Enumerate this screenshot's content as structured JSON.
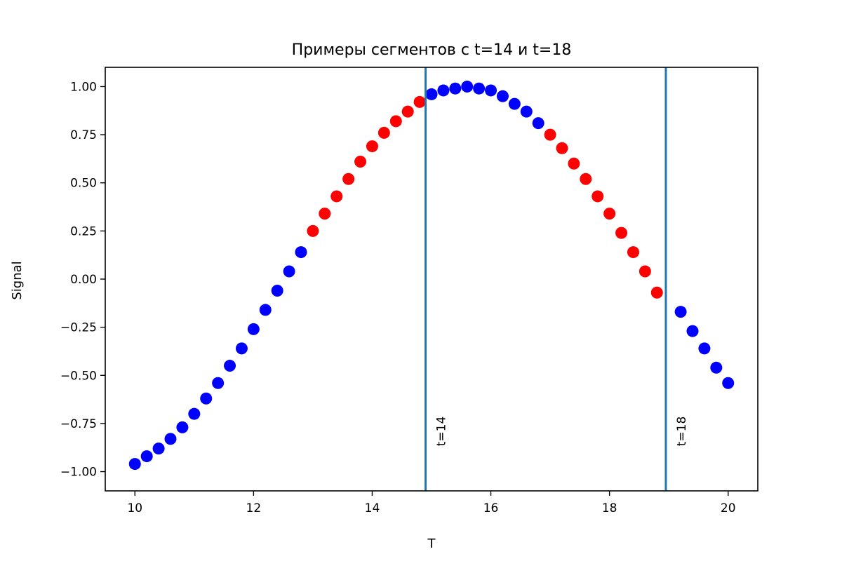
{
  "chart_data": {
    "type": "scatter",
    "title": "Примеры сегментов с t=14 и t=18",
    "xlabel": "T",
    "ylabel": "Signal",
    "xlim": [
      9.5,
      20.5
    ],
    "ylim": [
      -1.1,
      1.1
    ],
    "xticks": [
      10,
      12,
      14,
      16,
      18,
      20
    ],
    "xtick_labels": [
      "10",
      "12",
      "14",
      "16",
      "18",
      "20"
    ],
    "yticks": [
      -1.0,
      -0.75,
      -0.5,
      -0.25,
      0.0,
      0.25,
      0.5,
      0.75,
      1.0
    ],
    "ytick_labels": [
      "−1.00",
      "−0.75",
      "−0.50",
      "−0.25",
      "0.00",
      "0.25",
      "0.50",
      "0.75",
      "1.00"
    ],
    "grid": false,
    "colors": {
      "base": "#0000ff",
      "highlight": "#ff0000",
      "vline": "#1f77b4"
    },
    "series": [
      {
        "color": "#0000ff",
        "x": [
          10.0,
          10.2,
          10.4,
          10.6,
          10.8,
          11.0,
          11.2,
          11.4,
          11.6,
          11.8,
          12.0,
          12.2,
          12.4,
          12.6,
          12.8,
          15.0,
          15.2,
          15.4,
          15.6,
          15.8,
          16.0,
          16.2,
          16.4,
          16.6,
          16.8,
          19.2,
          19.4,
          19.6,
          19.8,
          20.0
        ],
        "y": [
          -0.96,
          -0.92,
          -0.88,
          -0.83,
          -0.77,
          -0.7,
          -0.62,
          -0.54,
          -0.45,
          -0.36,
          -0.26,
          -0.16,
          -0.06,
          0.04,
          0.14,
          0.96,
          0.98,
          0.99,
          1.0,
          0.99,
          0.98,
          0.95,
          0.91,
          0.87,
          0.81,
          -0.17,
          -0.27,
          -0.36,
          -0.46,
          -0.54
        ]
      },
      {
        "color": "#ff0000",
        "x": [
          13.0,
          13.2,
          13.4,
          13.6,
          13.8,
          14.0,
          14.2,
          14.4,
          14.6,
          14.8,
          17.0,
          17.2,
          17.4,
          17.6,
          17.8,
          18.0,
          18.2,
          18.4,
          18.6,
          18.8
        ],
        "y": [
          0.25,
          0.34,
          0.43,
          0.52,
          0.61,
          0.69,
          0.76,
          0.82,
          0.87,
          0.92,
          0.75,
          0.68,
          0.6,
          0.52,
          0.43,
          0.34,
          0.24,
          0.14,
          0.04,
          -0.07
        ]
      }
    ],
    "vlines": [
      {
        "x": 14.9,
        "label": "t=14"
      },
      {
        "x": 18.95,
        "label": "t=18"
      }
    ]
  }
}
